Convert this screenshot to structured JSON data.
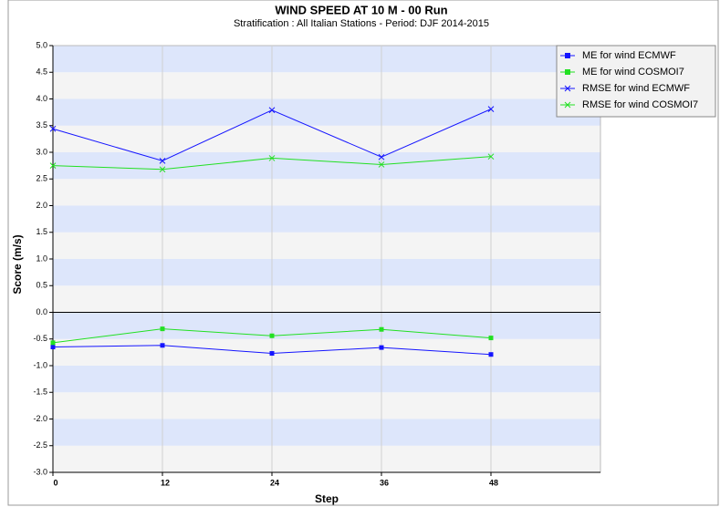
{
  "chart_data": {
    "type": "line",
    "title": "WIND SPEED AT 10 M - 00 Run",
    "subtitle": "Stratification : All Italian Stations - Period: DJF 2014-2015",
    "x_label": "Step",
    "y_label": "Score (m/s)",
    "x": [
      0,
      12,
      24,
      36,
      48
    ],
    "xlim": [
      0,
      60
    ],
    "xticks": [
      0,
      12,
      24,
      36,
      48
    ],
    "ylim": [
      -3,
      5
    ],
    "yticks": [
      {
        "value": -3,
        "label": "-3.0"
      },
      -2.5,
      {
        "value": -2,
        "label": "-2.0"
      },
      -1.5,
      {
        "value": -1,
        "label": "-1.0"
      },
      -0.5,
      {
        "value": 0,
        "label": "0.0"
      },
      0.5,
      {
        "value": 1,
        "label": "1.0"
      },
      1.5,
      {
        "value": 2,
        "label": "2.0"
      },
      2.5,
      {
        "value": 3,
        "label": "3.0"
      },
      3.5,
      {
        "value": 4,
        "label": "4.0"
      },
      4.5,
      {
        "value": 5,
        "label": "5.0"
      }
    ],
    "grid": true,
    "legend": "right",
    "series": [
      {
        "name": "ME for wind ECMWF",
        "color": "#1515ff",
        "marker": "square",
        "values": [
          -0.65,
          -0.62,
          -0.77,
          -0.66,
          -0.79
        ]
      },
      {
        "name": "ME for wind COSMOI7",
        "color": "#22e022",
        "marker": "square",
        "values": [
          -0.57,
          -0.31,
          -0.44,
          -0.32,
          -0.48
        ]
      },
      {
        "name": "RMSE for wind ECMWF",
        "color": "#1515ff",
        "marker": "x",
        "values": [
          3.44,
          2.84,
          3.79,
          2.91,
          3.81
        ]
      },
      {
        "name": "RMSE for wind COSMOI7",
        "color": "#22e022",
        "marker": "x",
        "values": [
          2.75,
          2.68,
          2.89,
          2.77,
          2.92
        ]
      }
    ]
  }
}
